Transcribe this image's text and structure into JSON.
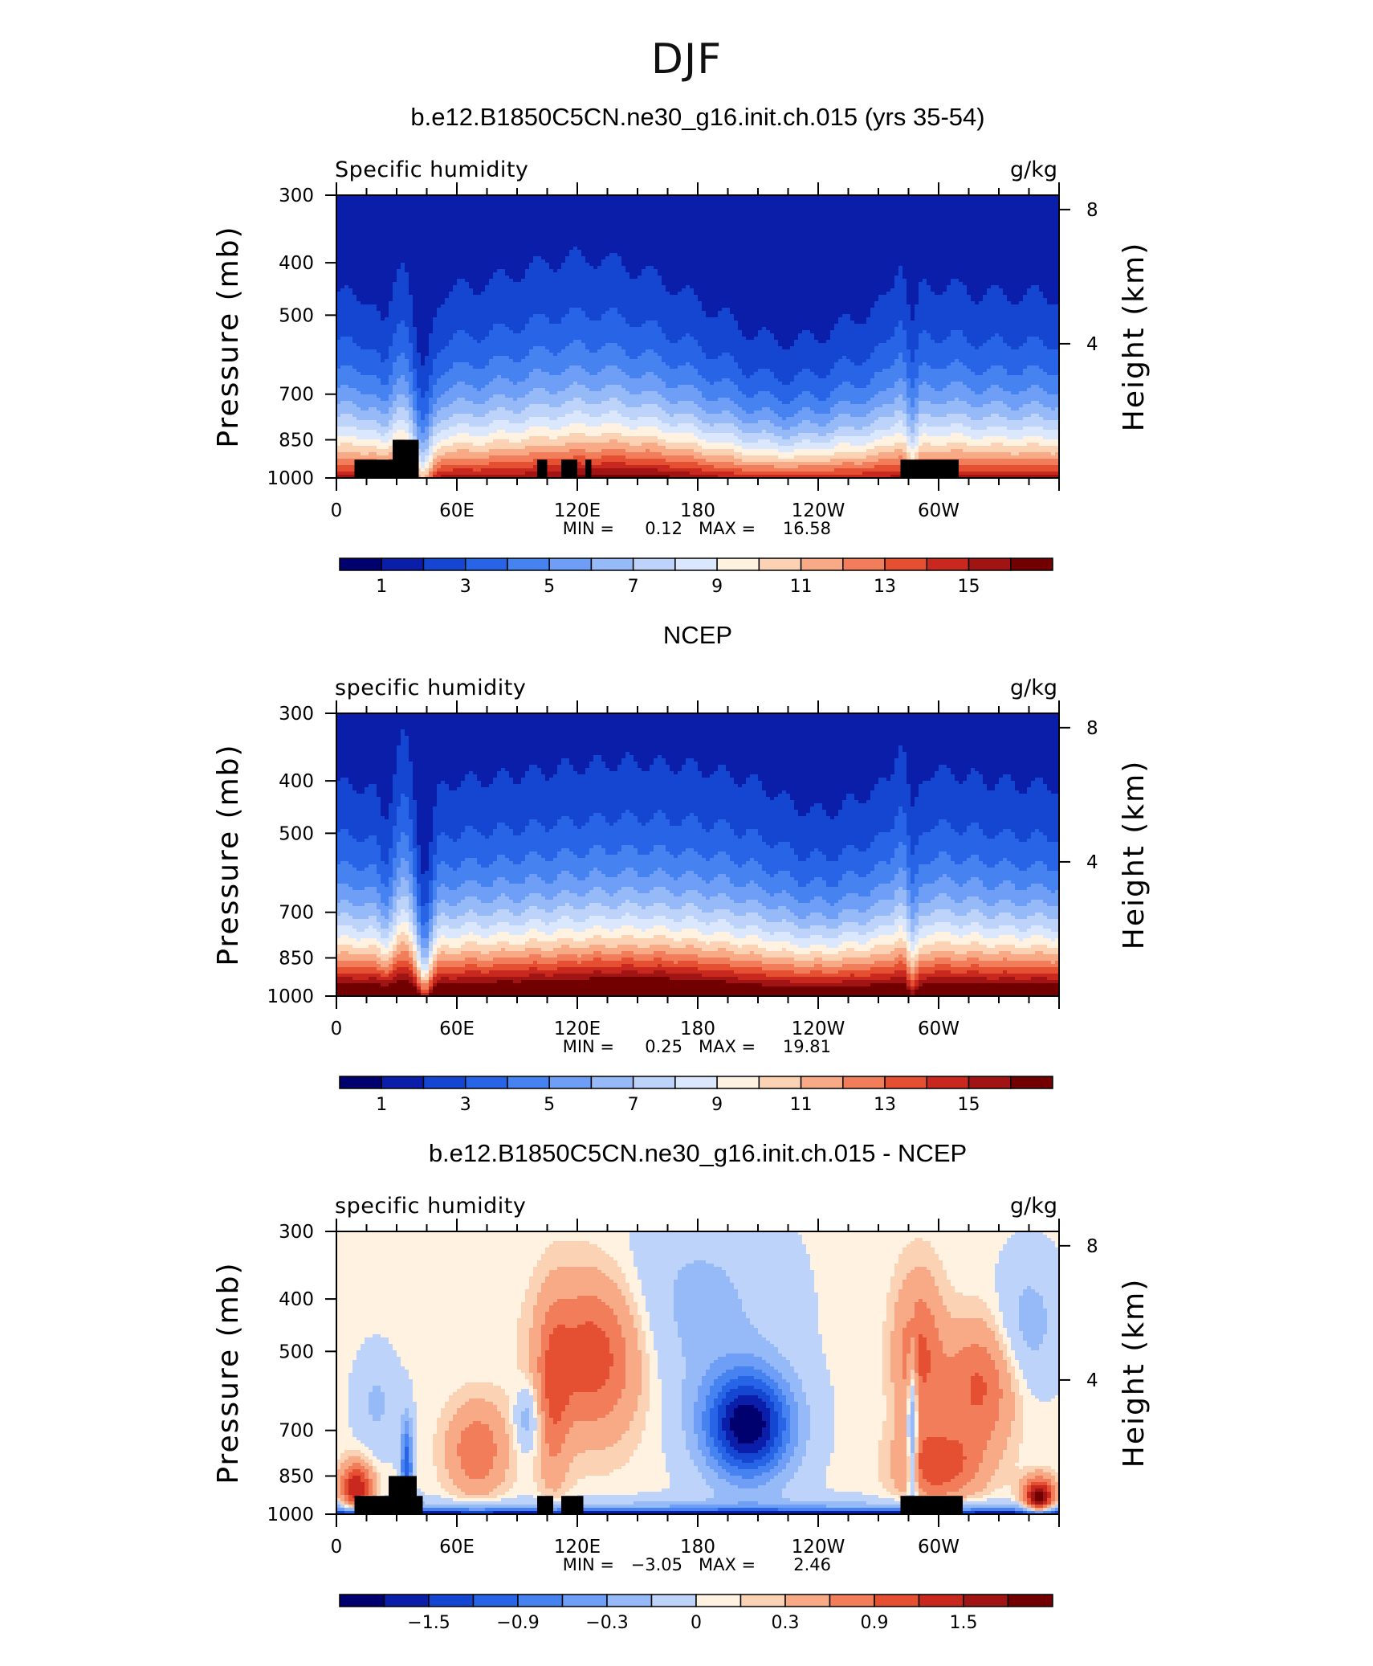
{
  "page_title": "DJF",
  "panels": [
    {
      "title": "b.e12.B1850C5CN.ne30_g16.init.ch.015 (yrs 35-54)",
      "left_label": "Specific humidity",
      "right_label": "g/kg",
      "stats_min_label": "MIN =",
      "stats_min": "0.12",
      "stats_max_label": "MAX =",
      "stats_max": "16.58"
    },
    {
      "title": "NCEP",
      "left_label": "specific humidity",
      "right_label": "g/kg",
      "stats_min_label": "MIN =",
      "stats_min": "0.25",
      "stats_max_label": "MAX =",
      "stats_max": "19.81"
    },
    {
      "title": "b.e12.B1850C5CN.ne30_g16.init.ch.015 - NCEP",
      "left_label": "specific humidity",
      "right_label": "g/kg",
      "stats_min_label": "MIN =",
      "stats_min": "−3.05",
      "stats_max_label": "MAX =",
      "stats_max": "2.46"
    }
  ],
  "colors": {
    "full_scale": [
      "#00006e",
      "#0a1eaa",
      "#1446d2",
      "#2864e6",
      "#4682f0",
      "#6e9ef5",
      "#96b9f8",
      "#bed3fa",
      "#dbe7fc",
      "#fff2e0",
      "#fcd2b4",
      "#f8aa87",
      "#f27d5a",
      "#e65032",
      "#c8281e",
      "#a01414",
      "#730000"
    ],
    "diff_scale": [
      "#00006e",
      "#0a1eaa",
      "#1446d2",
      "#2864e6",
      "#4682f0",
      "#6e9ef5",
      "#96b9f8",
      "#bed3fa",
      "#fff2e0",
      "#fcd2b4",
      "#f8aa87",
      "#f27d5a",
      "#e65032",
      "#c8281e",
      "#a01414",
      "#730000"
    ]
  },
  "chart_data": [
    {
      "type": "heatmap",
      "title": "b.e12.B1850C5CN.ne30_g16.init.ch.015 (yrs 35-54)",
      "xlabel": "",
      "ylabel": "Pressure (mb)",
      "ylabel_right": "Height (km)",
      "xlim": [
        0,
        360
      ],
      "ylim": [
        1000,
        300
      ],
      "y_scale": "log",
      "x_ticks": [
        "0",
        "60E",
        "120E",
        "180",
        "120W",
        "60W"
      ],
      "x_tick_values": [
        0,
        60,
        120,
        180,
        240,
        300
      ],
      "y_ticks": [
        300,
        400,
        500,
        700,
        850,
        1000
      ],
      "y_right_ticks": [
        "4",
        "8"
      ],
      "y_right_tick_values": [
        4,
        8
      ],
      "colorbar_labels": [
        "1",
        "3",
        "5",
        "7",
        "9",
        "11",
        "13",
        "15"
      ],
      "levels": [
        0,
        1,
        2,
        3,
        4,
        5,
        6,
        7,
        8,
        9,
        10,
        11,
        12,
        13,
        14,
        15,
        16
      ],
      "min": 0.12,
      "max": 16.58,
      "units": "g/kg",
      "topography": [
        [
          9,
          29,
          925
        ],
        [
          28,
          41,
          850
        ],
        [
          29,
          41,
          925
        ],
        [
          100,
          105,
          925
        ],
        [
          112,
          120,
          925
        ],
        [
          124,
          127,
          925
        ],
        [
          281,
          310,
          925
        ]
      ]
    },
    {
      "type": "heatmap",
      "title": "NCEP",
      "xlabel": "",
      "ylabel": "Pressure (mb)",
      "ylabel_right": "Height (km)",
      "xlim": [
        0,
        360
      ],
      "ylim": [
        1000,
        300
      ],
      "y_scale": "log",
      "x_ticks": [
        "0",
        "60E",
        "120E",
        "180",
        "120W",
        "60W"
      ],
      "x_tick_values": [
        0,
        60,
        120,
        180,
        240,
        300
      ],
      "y_ticks": [
        300,
        400,
        500,
        700,
        850,
        1000
      ],
      "y_right_ticks": [
        "4",
        "8"
      ],
      "y_right_tick_values": [
        4,
        8
      ],
      "colorbar_labels": [
        "1",
        "3",
        "5",
        "7",
        "9",
        "11",
        "13",
        "15"
      ],
      "levels": [
        0,
        1,
        2,
        3,
        4,
        5,
        6,
        7,
        8,
        9,
        10,
        11,
        12,
        13,
        14,
        15,
        16
      ],
      "min": 0.25,
      "max": 19.81,
      "units": "g/kg",
      "topography": []
    },
    {
      "type": "heatmap",
      "title": "b.e12.B1850C5CN.ne30_g16.init.ch.015 - NCEP",
      "xlabel": "",
      "ylabel": "Pressure (mb)",
      "ylabel_right": "Height (km)",
      "xlim": [
        0,
        360
      ],
      "ylim": [
        1000,
        300
      ],
      "y_scale": "log",
      "x_ticks": [
        "0",
        "60E",
        "120E",
        "180",
        "120W",
        "60W"
      ],
      "x_tick_values": [
        0,
        60,
        120,
        180,
        240,
        300
      ],
      "y_ticks": [
        300,
        400,
        500,
        700,
        850,
        1000
      ],
      "y_right_ticks": [
        "4",
        "8"
      ],
      "y_right_tick_values": [
        4,
        8
      ],
      "colorbar_labels": [
        "−1.5",
        "−0.9",
        "−0.3",
        "0",
        "0.3",
        "0.9",
        "1.5"
      ],
      "levels": [
        -2.1,
        -1.8,
        -1.5,
        -1.2,
        -0.9,
        -0.6,
        -0.3,
        0,
        0.15,
        0.3,
        0.6,
        0.9,
        1.2,
        1.5,
        1.8,
        2.1
      ],
      "min": -3.05,
      "max": 2.46,
      "units": "g/kg",
      "topography": [
        [
          9,
          29,
          925
        ],
        [
          26,
          40,
          850
        ],
        [
          29,
          43,
          925
        ],
        [
          100,
          108,
          925
        ],
        [
          112,
          123,
          925
        ],
        [
          281,
          312,
          925
        ]
      ]
    }
  ]
}
